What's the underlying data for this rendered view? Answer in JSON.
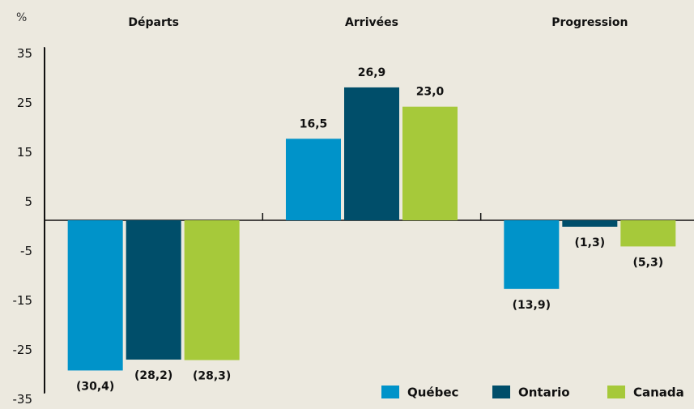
{
  "chart_data": {
    "type": "bar",
    "y_label": "%",
    "categories": [
      "Départs",
      "Arrivées",
      "Progression"
    ],
    "series": [
      {
        "name": "Québec",
        "color": "#0093c9",
        "values": [
          -30.4,
          16.5,
          -13.9
        ],
        "value_labels": [
          "(30,4)",
          "16,5",
          "(13,9)"
        ]
      },
      {
        "name": "Ontario",
        "color": "#004e6a",
        "values": [
          -28.2,
          26.9,
          -1.3
        ],
        "value_labels": [
          "(28,2)",
          "26,9",
          "(1,3)"
        ]
      },
      {
        "name": "Canada",
        "color": "#a6c93a",
        "values": [
          -28.3,
          23.0,
          -5.3
        ],
        "value_labels": [
          "(28,3)",
          "23,0",
          "(5,3)"
        ]
      }
    ],
    "ylim": [
      -35,
      35
    ],
    "yticks": [
      35,
      25,
      15,
      5,
      -5,
      -15,
      -25,
      -35
    ],
    "grid": false
  }
}
